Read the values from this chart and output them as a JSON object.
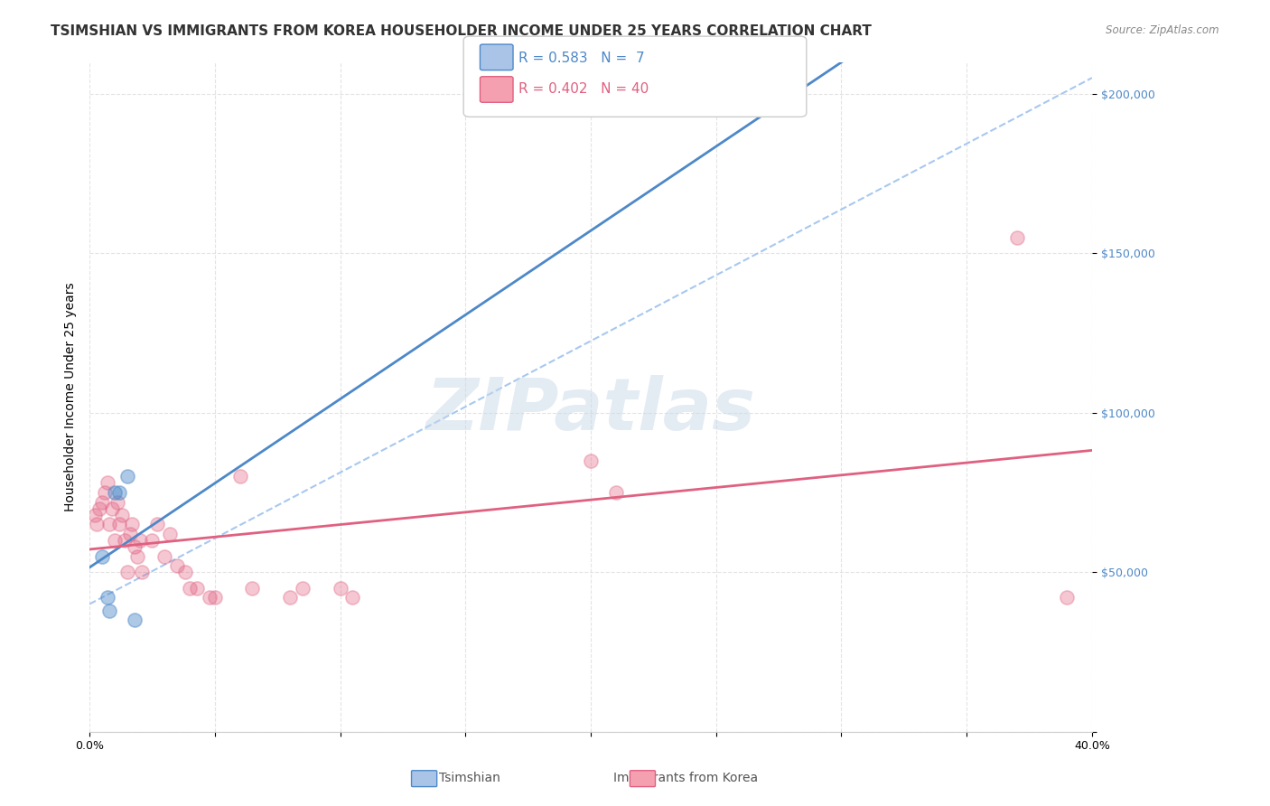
{
  "title": "TSIMSHIAN VS IMMIGRANTS FROM KOREA HOUSEHOLDER INCOME UNDER 25 YEARS CORRELATION CHART",
  "source": "Source: ZipAtlas.com",
  "xlabel_bottom": [
    "0.0%",
    "40.0%"
  ],
  "ylabel": "Householder Income Under 25 years",
  "yticks": [
    0,
    50000,
    100000,
    150000,
    200000
  ],
  "ytick_labels": [
    "",
    "$50,000",
    "$100,000",
    "$150,000",
    "$200,000"
  ],
  "xmin": 0.0,
  "xmax": 0.4,
  "ymin": 0,
  "ymax": 210000,
  "watermark": "ZIPatlas",
  "legend1_label": "R = 0.583   N =  7",
  "legend2_label": "R = 0.402   N = 40",
  "legend1_color": "#aac4e8",
  "legend2_color": "#f4a0b0",
  "blue_R": 0.583,
  "blue_N": 7,
  "pink_R": 0.402,
  "pink_N": 40,
  "blue_scatter_x": [
    0.005,
    0.007,
    0.008,
    0.01,
    0.012,
    0.015,
    0.018
  ],
  "blue_scatter_y": [
    55000,
    42000,
    38000,
    75000,
    75000,
    80000,
    35000
  ],
  "pink_scatter_x": [
    0.002,
    0.003,
    0.004,
    0.005,
    0.006,
    0.007,
    0.008,
    0.009,
    0.01,
    0.011,
    0.012,
    0.013,
    0.014,
    0.015,
    0.016,
    0.017,
    0.018,
    0.019,
    0.02,
    0.021,
    0.025,
    0.027,
    0.03,
    0.032,
    0.035,
    0.038,
    0.04,
    0.043,
    0.048,
    0.05,
    0.06,
    0.065,
    0.08,
    0.085,
    0.1,
    0.105,
    0.2,
    0.21,
    0.37,
    0.39
  ],
  "pink_scatter_y": [
    68000,
    65000,
    70000,
    72000,
    75000,
    78000,
    65000,
    70000,
    60000,
    72000,
    65000,
    68000,
    60000,
    50000,
    62000,
    65000,
    58000,
    55000,
    60000,
    50000,
    60000,
    65000,
    55000,
    62000,
    52000,
    50000,
    45000,
    45000,
    42000,
    42000,
    80000,
    45000,
    42000,
    45000,
    45000,
    42000,
    85000,
    75000,
    155000,
    42000
  ],
  "blue_line_color": "#4d88c8",
  "blue_dash_color": "#a8c8f0",
  "pink_line_color": "#e06080",
  "background_color": "#ffffff",
  "grid_color": "#dddddd",
  "title_fontsize": 11,
  "axis_label_fontsize": 10,
  "tick_fontsize": 9,
  "marker_size": 120,
  "marker_alpha": 0.35,
  "marker_linewidth": 1.2
}
